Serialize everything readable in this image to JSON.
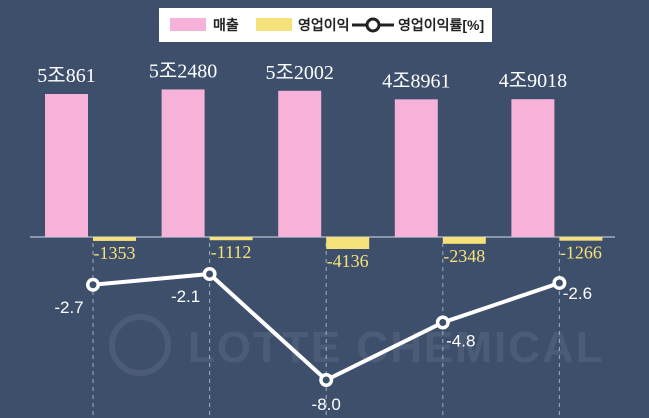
{
  "watermark": "LOTTE CHEMICAL",
  "chart_data": {
    "type": "bar",
    "title": "",
    "xlabel": "",
    "ylabel": "",
    "grid": false,
    "legend_position": "top",
    "categories": [
      "",
      "",
      "",
      "",
      ""
    ],
    "series": [
      {
        "name": "매출",
        "type": "bar",
        "color": "#f7b2d9",
        "values": [
          50861,
          52480,
          52002,
          48961,
          49018
        ],
        "labels": [
          "5조861",
          "5조2480",
          "5조2002",
          "4조8961",
          "4조9018"
        ]
      },
      {
        "name": "영업이익",
        "type": "bar",
        "color": "#f5e27a",
        "values": [
          -1353,
          -1112,
          -4136,
          -2348,
          -1266
        ],
        "labels": [
          "-1353",
          "-1112",
          "-4136",
          "-2348",
          "-1266"
        ]
      },
      {
        "name": "영업이익률[%]",
        "type": "line",
        "color": "#ffffff",
        "values": [
          -2.7,
          -2.1,
          -8.0,
          -4.8,
          -2.6
        ],
        "labels": [
          "-2.7",
          "-2.1",
          "-8.0",
          "-4.8",
          "-2.6"
        ]
      }
    ]
  }
}
